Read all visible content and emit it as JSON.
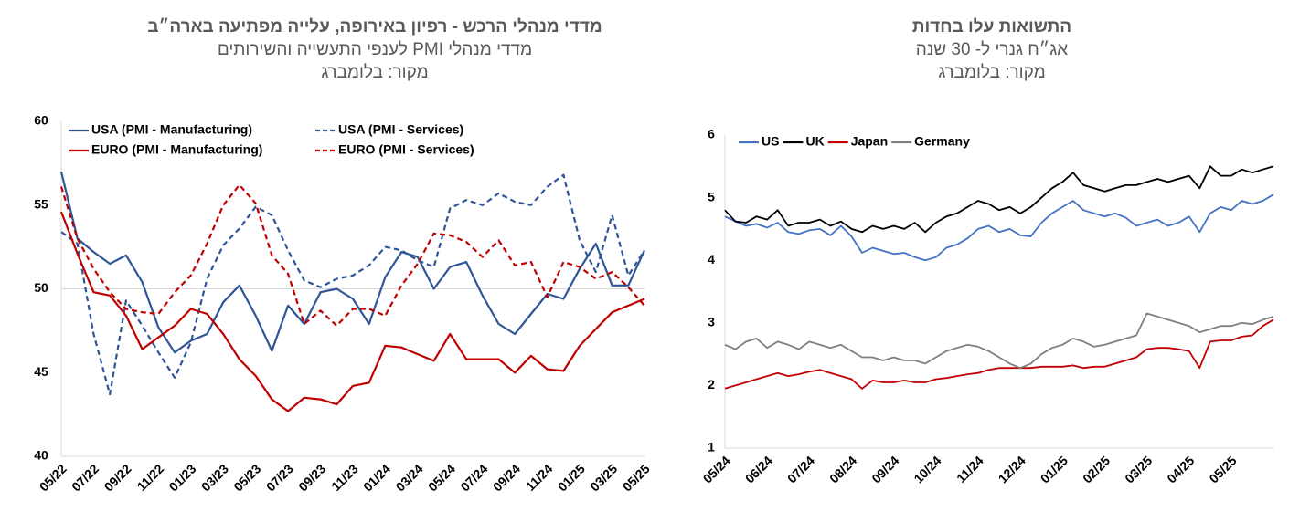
{
  "chart_data": [
    {
      "type": "line",
      "title": "מדדי מנהלי הרכש - רפיון באירופה, עלייה מפתיעה בארה״ב",
      "subtitle": "מדדי מנהלי PMI לענפי התעשייה והשירותים",
      "source": "מקור: בלומברג",
      "categories": [
        "05/22",
        null,
        "07/22",
        null,
        "09/22",
        null,
        "11/22",
        null,
        "01/23",
        null,
        "03/23",
        null,
        "05/23",
        null,
        "07/23",
        null,
        "09/23",
        null,
        "11/23",
        null,
        "01/24",
        null,
        "03/24",
        null,
        "05/24",
        null,
        "07/24",
        null,
        "09/24",
        null,
        "11/24",
        null,
        "01/25",
        null,
        "03/25",
        null,
        "05/25"
      ],
      "series": [
        {
          "name": "USA (PMI - Manufacturing)",
          "color": "#2f5597",
          "dashed": false,
          "values": [
            57,
            53,
            52.2,
            51.5,
            52,
            50.4,
            47.7,
            46.2,
            46.9,
            47.3,
            49.2,
            50.2,
            48.4,
            46.3,
            49.0,
            47.9,
            49.8,
            50.0,
            49.4,
            47.9,
            50.7,
            52.2,
            51.9,
            50.0,
            51.3,
            51.6,
            49.6,
            47.9,
            47.3,
            48.5,
            49.7,
            49.4,
            51.2,
            52.7,
            50.2,
            50.2,
            52.3
          ]
        },
        {
          "name": "USA (PMI - Services)",
          "color": "#2f5597",
          "dashed": true,
          "values": [
            53.4,
            52.7,
            47.3,
            43.7,
            49.3,
            47.8,
            46.2,
            44.7,
            46.8,
            50.6,
            52.6,
            53.6,
            54.9,
            54.4,
            52.3,
            50.5,
            50.1,
            50.6,
            50.8,
            51.4,
            52.5,
            52.3,
            51.7,
            51.3,
            54.8,
            55.3,
            55.0,
            55.7,
            55.2,
            55.0,
            56.1,
            56.8,
            52.9,
            51.0,
            54.4,
            50.8,
            52.3
          ]
        },
        {
          "name": "EURO (PMI - Manufacturing)",
          "color": "#c00000",
          "dashed": false,
          "values": [
            54.6,
            52.1,
            49.8,
            49.6,
            48.4,
            46.4,
            47.1,
            47.8,
            48.8,
            48.5,
            47.3,
            45.8,
            44.8,
            43.4,
            42.7,
            43.5,
            43.4,
            43.1,
            44.2,
            44.4,
            46.6,
            46.5,
            46.1,
            45.7,
            47.3,
            45.8,
            45.8,
            45.8,
            45.0,
            46.0,
            45.2,
            45.1,
            46.6,
            47.6,
            48.6,
            49.0,
            49.4
          ]
        },
        {
          "name": "EURO (PMI - Services)",
          "color": "#c00000",
          "dashed": true,
          "values": [
            56.1,
            53.0,
            51.2,
            49.8,
            48.8,
            48.6,
            48.5,
            49.8,
            50.8,
            52.7,
            55.0,
            56.2,
            55.1,
            52.0,
            50.9,
            47.9,
            48.7,
            47.8,
            48.8,
            48.8,
            48.4,
            50.2,
            51.5,
            53.3,
            53.2,
            52.8,
            51.9,
            52.9,
            51.4,
            51.6,
            49.5,
            51.6,
            51.3,
            50.6,
            51.0,
            50.1,
            49.0
          ]
        }
      ],
      "ylim": [
        40,
        60
      ],
      "yticks": [
        40,
        45,
        50,
        55,
        60
      ],
      "reference_line": 50,
      "legend": "top-left"
    },
    {
      "type": "line",
      "title": "התשואות עלו בחדות",
      "subtitle": "אג״ח גנרי ל- 30 שנה",
      "source": "מקור: בלומברג",
      "categories": [
        "05/24",
        null,
        null,
        null,
        "06/24",
        null,
        null,
        null,
        "07/24",
        null,
        null,
        null,
        "08/24",
        null,
        null,
        null,
        "09/24",
        null,
        null,
        null,
        "10/24",
        null,
        null,
        null,
        "11/24",
        null,
        null,
        null,
        "12/24",
        null,
        null,
        null,
        "01/25",
        null,
        null,
        null,
        "02/25",
        null,
        null,
        null,
        "03/25",
        null,
        null,
        null,
        "04/25",
        null,
        null,
        null,
        "05/25",
        null,
        null,
        null,
        null
      ],
      "series": [
        {
          "name": "US",
          "color": "#4472c4",
          "values": [
            4.7,
            4.62,
            4.55,
            4.58,
            4.52,
            4.6,
            4.45,
            4.42,
            4.48,
            4.5,
            4.4,
            4.55,
            4.38,
            4.12,
            4.2,
            4.15,
            4.1,
            4.12,
            4.05,
            4.0,
            4.05,
            4.2,
            4.25,
            4.35,
            4.5,
            4.55,
            4.45,
            4.5,
            4.4,
            4.38,
            4.6,
            4.75,
            4.85,
            4.95,
            4.8,
            4.75,
            4.7,
            4.75,
            4.68,
            4.55,
            4.6,
            4.65,
            4.55,
            4.6,
            4.7,
            4.45,
            4.75,
            4.85,
            4.8,
            4.95,
            4.9,
            4.95,
            5.05
          ]
        },
        {
          "name": "UK",
          "color": "#000000",
          "values": [
            4.8,
            4.62,
            4.6,
            4.7,
            4.65,
            4.8,
            4.55,
            4.6,
            4.6,
            4.65,
            4.55,
            4.62,
            4.5,
            4.45,
            4.55,
            4.5,
            4.55,
            4.5,
            4.6,
            4.45,
            4.6,
            4.7,
            4.75,
            4.85,
            4.95,
            4.9,
            4.8,
            4.85,
            4.75,
            4.85,
            5.0,
            5.15,
            5.25,
            5.4,
            5.2,
            5.15,
            5.1,
            5.15,
            5.2,
            5.2,
            5.25,
            5.3,
            5.25,
            5.3,
            5.35,
            5.15,
            5.5,
            5.35,
            5.35,
            5.45,
            5.4,
            5.45,
            5.5
          ]
        },
        {
          "name": "Japan",
          "color": "#c00000",
          "values": [
            1.95,
            2.0,
            2.05,
            2.1,
            2.15,
            2.2,
            2.15,
            2.18,
            2.22,
            2.25,
            2.2,
            2.15,
            2.1,
            1.95,
            2.08,
            2.05,
            2.05,
            2.08,
            2.05,
            2.05,
            2.1,
            2.12,
            2.15,
            2.18,
            2.2,
            2.25,
            2.28,
            2.28,
            2.28,
            2.28,
            2.3,
            2.3,
            2.3,
            2.32,
            2.28,
            2.3,
            2.3,
            2.35,
            2.4,
            2.45,
            2.58,
            2.6,
            2.6,
            2.58,
            2.55,
            2.28,
            2.7,
            2.72,
            2.72,
            2.78,
            2.8,
            2.95,
            3.05
          ]
        },
        {
          "name": "Germany",
          "color": "#808080",
          "values": [
            2.65,
            2.58,
            2.7,
            2.75,
            2.6,
            2.7,
            2.65,
            2.58,
            2.7,
            2.65,
            2.6,
            2.65,
            2.55,
            2.45,
            2.45,
            2.4,
            2.45,
            2.4,
            2.4,
            2.35,
            2.45,
            2.55,
            2.6,
            2.65,
            2.62,
            2.55,
            2.45,
            2.35,
            2.28,
            2.35,
            2.5,
            2.6,
            2.65,
            2.75,
            2.7,
            2.62,
            2.65,
            2.7,
            2.75,
            2.8,
            3.15,
            3.1,
            3.05,
            3.0,
            2.95,
            2.85,
            2.9,
            2.95,
            2.95,
            3.0,
            2.98,
            3.05,
            3.1
          ]
        }
      ],
      "ylim": [
        1,
        6
      ],
      "yticks": [
        1,
        2,
        3,
        4,
        5,
        6
      ],
      "legend": "top-left"
    }
  ]
}
